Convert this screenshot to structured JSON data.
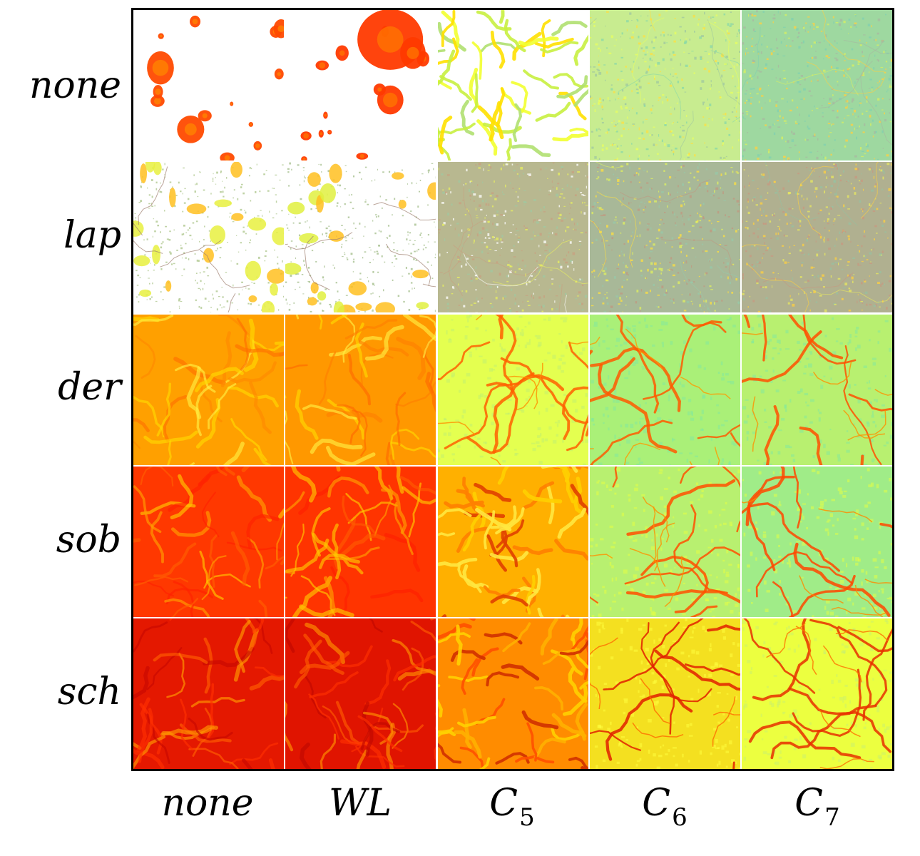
{
  "row_labels": [
    "none",
    "lap",
    "der",
    "sob",
    "sch"
  ],
  "column_labels": [
    {
      "base": "none",
      "sub": ""
    },
    {
      "base": "WL",
      "sub": ""
    },
    {
      "base": "C",
      "sub": "5"
    },
    {
      "base": "C",
      "sub": "6"
    },
    {
      "base": "C",
      "sub": "7"
    }
  ],
  "cell_styles": [
    [
      {
        "texture": "blob-sparse",
        "base": "#ffffff",
        "colors": [
          "#ff4a00",
          "#ff8a00",
          "#ffd000"
        ]
      },
      {
        "texture": "blob-sparse",
        "base": "#ffffff",
        "colors": [
          "#ff3a00",
          "#ff7a00",
          "#ffc400"
        ]
      },
      {
        "texture": "maze",
        "base": "#ffffff",
        "colors": [
          "#f2ff30",
          "#c8f040",
          "#ffe000",
          "#b0e070"
        ]
      },
      {
        "texture": "noise-fine",
        "base": "#c8ec90",
        "colors": [
          "#8ad8a8",
          "#e8ff60",
          "#ffe040",
          "#a0c8a0"
        ]
      },
      {
        "texture": "noise-fine",
        "base": "#9ed8a0",
        "colors": [
          "#80d0b0",
          "#d8f060",
          "#ffd040",
          "#a8b8a0"
        ]
      }
    ],
    [
      {
        "texture": "patchy",
        "base": "#ffffff",
        "colors": [
          "#b0c890",
          "#e8f040",
          "#ffc020",
          "#a08070"
        ]
      },
      {
        "texture": "patchy",
        "base": "#ffffff",
        "colors": [
          "#a8c090",
          "#e0f040",
          "#ffc020",
          "#a08070"
        ]
      },
      {
        "texture": "noise-fine",
        "base": "#b8b890",
        "colors": [
          "#a0c8a0",
          "#c8a080",
          "#e8f060",
          "#ffffff"
        ]
      },
      {
        "texture": "noise-fine",
        "base": "#a8b898",
        "colors": [
          "#98c8a8",
          "#c09880",
          "#e0f060",
          "#ffe040"
        ]
      },
      {
        "texture": "noise-fine",
        "base": "#b0b090",
        "colors": [
          "#98c0a0",
          "#c89880",
          "#e8e860",
          "#ffd040"
        ]
      }
    ],
    [
      {
        "texture": "swirl",
        "base": "#ffa000",
        "colors": [
          "#ffd800",
          "#ff8800",
          "#ffee40",
          "#ff7000"
        ]
      },
      {
        "texture": "swirl",
        "base": "#ff9800",
        "colors": [
          "#ffd800",
          "#ff8000",
          "#ffee40",
          "#ff6a00"
        ]
      },
      {
        "texture": "cracks",
        "base": "#e4ff50",
        "colors": [
          "#c0f070",
          "#ff6000",
          "#ff9000"
        ]
      },
      {
        "texture": "cracks",
        "base": "#aaf078",
        "colors": [
          "#80e8a0",
          "#ff5a00",
          "#ff9a00"
        ]
      },
      {
        "texture": "cracks",
        "base": "#b8f070",
        "colors": [
          "#80e8a0",
          "#ff5000",
          "#ff9000"
        ]
      }
    ],
    [
      {
        "texture": "swirl",
        "base": "#ff3800",
        "colors": [
          "#ffa000",
          "#ff2200",
          "#ffc800",
          "#ff6000"
        ]
      },
      {
        "texture": "swirl",
        "base": "#ff3400",
        "colors": [
          "#ffa000",
          "#ff1e00",
          "#ffc800",
          "#ff5a00"
        ]
      },
      {
        "texture": "maze",
        "base": "#ffb000",
        "colors": [
          "#ffe840",
          "#ff8000",
          "#e04000",
          "#ffd000"
        ]
      },
      {
        "texture": "cracks",
        "base": "#b8f070",
        "colors": [
          "#e8ff40",
          "#ff5000",
          "#ff9000"
        ]
      },
      {
        "texture": "cracks",
        "base": "#a0ec88",
        "colors": [
          "#e8ff40",
          "#ff4800",
          "#ff8a00"
        ]
      }
    ],
    [
      {
        "texture": "swirl",
        "base": "#e41800",
        "colors": [
          "#ff6000",
          "#c80800",
          "#ff9a00",
          "#ff3000"
        ]
      },
      {
        "texture": "swirl",
        "base": "#e01400",
        "colors": [
          "#ff5a00",
          "#c00800",
          "#ff9000",
          "#ff3000"
        ]
      },
      {
        "texture": "maze",
        "base": "#ff8c00",
        "colors": [
          "#ffd000",
          "#ff5000",
          "#d03000",
          "#ffb000"
        ]
      },
      {
        "texture": "cracks",
        "base": "#f4e020",
        "colors": [
          "#ffff40",
          "#e02000",
          "#ff6a00"
        ]
      },
      {
        "texture": "cracks",
        "base": "#ecff40",
        "colors": [
          "#c8f070",
          "#e83000",
          "#ff7000"
        ]
      }
    ]
  ]
}
